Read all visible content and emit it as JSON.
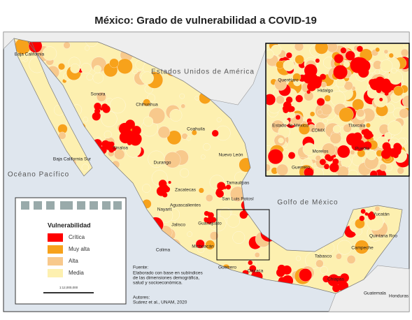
{
  "title": "México: Grado de vulnerabilidad a COVID-19",
  "map_labels": {
    "usa": "Estados Unidos de América",
    "pacific": "Océano Pacífico",
    "gulf": "Golfo de México",
    "guatemala": "Guatemala",
    "honduras": "Honduras",
    "states": [
      "Baja California",
      "Sonora",
      "Chihuahua",
      "Coahuila",
      "Sinaloa",
      "Durango",
      "Nuevo León",
      "Tamaulipas",
      "Baja California Sur",
      "Zacatecas",
      "San Luis Potosí",
      "Nayarit",
      "Aguascalientes",
      "Jalisco",
      "Guanajuato",
      "Colima",
      "Michoacán",
      "Guerrero",
      "Oaxaca",
      "Chiapas",
      "Tabasco",
      "Campeche",
      "Yucatán",
      "Quintana Roo"
    ]
  },
  "inset_labels": [
    "Querétaro",
    "Hidalgo",
    "Estado de México",
    "CDMX",
    "Tlaxcala",
    "Morelos",
    "Puebla",
    "Guerrero"
  ],
  "legend": {
    "title": "Vulnerabilidad",
    "items": [
      {
        "label": "Crítica",
        "color": "#ff0000"
      },
      {
        "label": "Muy alta",
        "color": "#f7a21b"
      },
      {
        "label": "Alta",
        "color": "#f8c98c"
      },
      {
        "label": "Media",
        "color": "#fdf0b0"
      }
    ]
  },
  "scale": "1:12,000,000",
  "source": {
    "heading": "Fuente:",
    "lines": [
      "Elaborado con base en subíndices",
      "de las dimensiones demográfica,",
      "salud y socioeconómica."
    ],
    "authors_heading": "Autores:",
    "authors": "Suárez et al., UNAM, 2020"
  }
}
